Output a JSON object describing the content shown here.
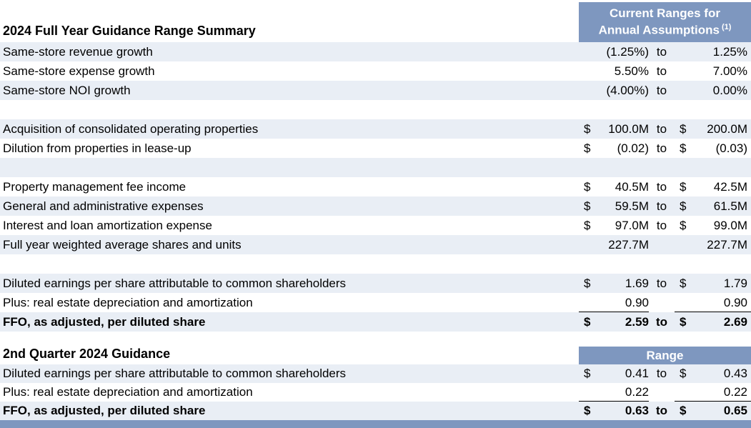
{
  "theme": {
    "accent_blue": "#7E97BF",
    "row_shade": "#E9EEF5",
    "row_white": "#FFFFFF",
    "header_text_color": "#FFFFFF",
    "body_text_color": "#000000"
  },
  "section1": {
    "title": "2024 Full Year Guidance Range Summary",
    "range_header": {
      "line1": "Current Ranges for",
      "line2": "Annual Assumptions",
      "note": "(1)"
    },
    "rows": [
      {
        "label": "Same-store revenue growth",
        "d1": "",
        "v1": "(1.25%)",
        "to": "to",
        "d2": "",
        "v2": "1.25%",
        "shade": true,
        "bold": false,
        "uline": false
      },
      {
        "label": "Same-store expense growth",
        "d1": "",
        "v1": "5.50%",
        "to": "to",
        "d2": "",
        "v2": "7.00%",
        "shade": false,
        "bold": false,
        "uline": false
      },
      {
        "label": "Same-store NOI growth",
        "d1": "",
        "v1": "(4.00%)",
        "to": "to",
        "d2": "",
        "v2": "0.00%",
        "shade": true,
        "bold": false,
        "uline": false
      },
      {
        "label": "",
        "d1": "",
        "v1": "",
        "to": "",
        "d2": "",
        "v2": "",
        "shade": false,
        "bold": false,
        "uline": false
      },
      {
        "label": "Acquisition of consolidated operating properties",
        "d1": "$",
        "v1": "100.0M",
        "to": "to",
        "d2": "$",
        "v2": "200.0M",
        "shade": true,
        "bold": false,
        "uline": false
      },
      {
        "label": "Dilution from properties in lease-up",
        "d1": "$",
        "v1": "(0.02)",
        "to": "to",
        "d2": "$",
        "v2": "(0.03)",
        "shade": false,
        "bold": false,
        "uline": false
      },
      {
        "label": "",
        "d1": "",
        "v1": "",
        "to": "",
        "d2": "",
        "v2": "",
        "shade": true,
        "bold": false,
        "uline": false
      },
      {
        "label": "Property management fee income",
        "d1": "$",
        "v1": "40.5M",
        "to": "to",
        "d2": "$",
        "v2": "42.5M",
        "shade": false,
        "bold": false,
        "uline": false
      },
      {
        "label": "General and administrative expenses",
        "d1": "$",
        "v1": "59.5M",
        "to": "to",
        "d2": "$",
        "v2": "61.5M",
        "shade": true,
        "bold": false,
        "uline": false
      },
      {
        "label": "Interest and loan amortization expense",
        "d1": "$",
        "v1": "97.0M",
        "to": "to",
        "d2": "$",
        "v2": "99.0M",
        "shade": false,
        "bold": false,
        "uline": false
      },
      {
        "label": "Full year weighted average shares and units",
        "d1": "",
        "v1": "227.7M",
        "to": "",
        "d2": "",
        "v2": "227.7M",
        "shade": true,
        "bold": false,
        "uline": false
      },
      {
        "label": "",
        "d1": "",
        "v1": "",
        "to": "",
        "d2": "",
        "v2": "",
        "shade": false,
        "bold": false,
        "uline": false
      },
      {
        "label": "Diluted earnings per share attributable to common shareholders",
        "d1": "$",
        "v1": "1.69",
        "to": "to",
        "d2": "$",
        "v2": "1.79",
        "shade": true,
        "bold": false,
        "uline": false
      },
      {
        "label": "Plus: real estate depreciation and amortization",
        "d1": "",
        "v1": "0.90",
        "to": "",
        "d2": "",
        "v2": "0.90",
        "shade": false,
        "bold": false,
        "uline": true
      },
      {
        "label": "FFO, as adjusted, per diluted share",
        "d1": "$",
        "v1": "2.59",
        "to": "to",
        "d2": "$",
        "v2": "2.69",
        "shade": true,
        "bold": true,
        "uline": false
      }
    ]
  },
  "section2": {
    "title": "2nd Quarter 2024 Guidance",
    "range_header": "Range",
    "rows": [
      {
        "label": "Diluted earnings per share attributable to common shareholders",
        "d1": "$",
        "v1": "0.41",
        "to": "to",
        "d2": "$",
        "v2": "0.43",
        "shade": true,
        "bold": false,
        "uline": false
      },
      {
        "label": "Plus: real estate depreciation and amortization",
        "d1": "",
        "v1": "0.22",
        "to": "",
        "d2": "",
        "v2": "0.22",
        "shade": false,
        "bold": false,
        "uline": true
      },
      {
        "label": "FFO, as adjusted, per diluted share",
        "d1": "$",
        "v1": "0.63",
        "to": "to",
        "d2": "$",
        "v2": "0.65",
        "shade": true,
        "bold": true,
        "uline": false
      }
    ]
  }
}
